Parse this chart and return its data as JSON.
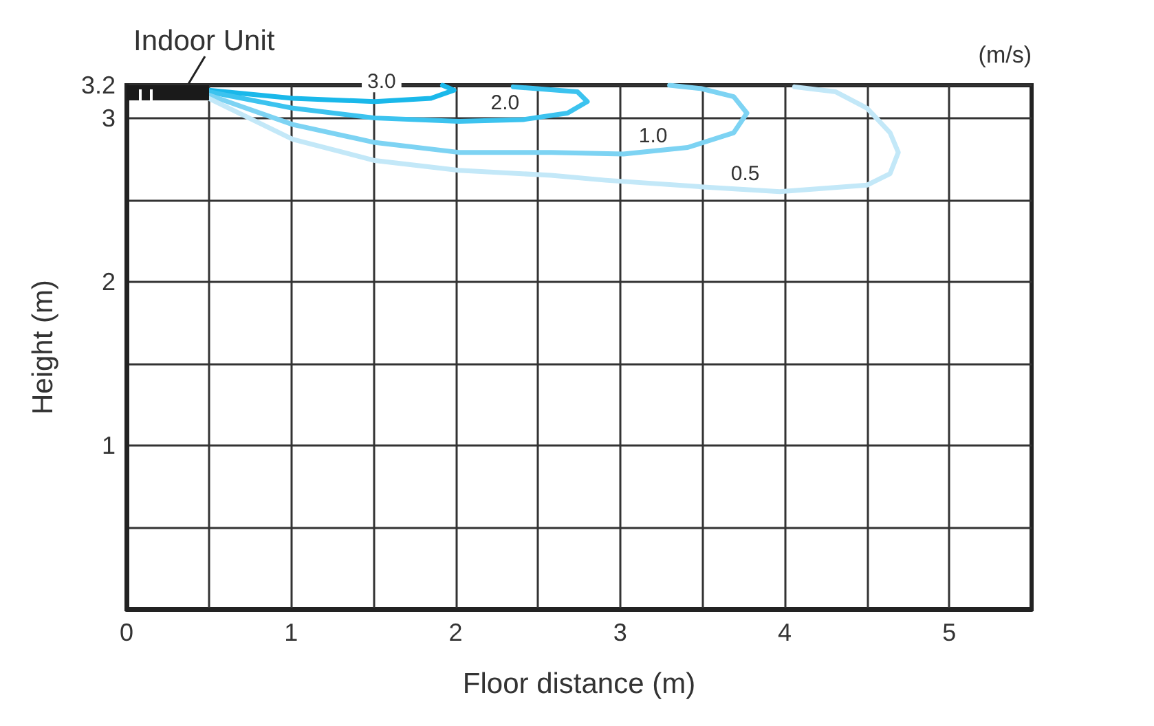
{
  "chart_data": {
    "type": "line",
    "xlabel": "Floor distance (m)",
    "ylabel": "Height (m)",
    "annotations": [
      "Indoor Unit",
      "(m/s)"
    ],
    "series": [
      {
        "name": "3.0",
        "color": "#1ab8ea",
        "x": [
          0.5,
          1.01,
          1.51,
          1.85,
          1.99,
          1.92
        ],
        "values": [
          3.17,
          3.12,
          3.1,
          3.12,
          3.17,
          3.2
        ]
      },
      {
        "name": "2.0",
        "color": "#3cc3ef",
        "x": [
          0.5,
          1.01,
          1.51,
          2.02,
          2.41,
          2.68,
          2.8,
          2.74,
          2.35
        ],
        "values": [
          3.16,
          3.06,
          3.0,
          2.98,
          2.99,
          3.03,
          3.1,
          3.16,
          3.19
        ]
      },
      {
        "name": "1.0",
        "color": "#7dd3f3",
        "x": [
          0.5,
          1.01,
          1.51,
          2.02,
          2.58,
          3.02,
          3.41,
          3.69,
          3.77,
          3.69,
          3.49,
          3.3
        ],
        "values": [
          3.14,
          2.96,
          2.85,
          2.79,
          2.79,
          2.78,
          2.82,
          2.91,
          3.03,
          3.13,
          3.18,
          3.2
        ]
      },
      {
        "name": "0.5",
        "color": "#c3e8f8",
        "x": [
          0.5,
          1.01,
          1.51,
          2.02,
          2.58,
          2.91,
          3.49,
          3.97,
          4.5,
          4.64,
          4.69,
          4.64,
          4.5,
          4.31,
          4.06
        ],
        "values": [
          3.12,
          2.87,
          2.74,
          2.68,
          2.65,
          2.62,
          2.58,
          2.55,
          2.59,
          2.66,
          2.79,
          2.91,
          3.06,
          3.16,
          3.19
        ]
      }
    ],
    "xlim": [
      0,
      5.5
    ],
    "ylim": [
      0,
      3.2
    ],
    "xticks": [
      0,
      {
        "value": 0.5,
        "label": null
      },
      1,
      {
        "value": 1.5,
        "label": null
      },
      2,
      {
        "value": 2.5,
        "label": null
      },
      3,
      {
        "value": 3.5,
        "label": null
      },
      4,
      {
        "value": 4.5,
        "label": null
      },
      5
    ],
    "yticks": [
      {
        "value": 0.5,
        "label": null
      },
      1,
      {
        "value": 1.5,
        "label": null
      },
      2,
      {
        "value": 2.5,
        "label": null
      },
      3,
      3.2
    ],
    "grid": true,
    "legend": false,
    "marker": "none",
    "line_style": "solid"
  }
}
